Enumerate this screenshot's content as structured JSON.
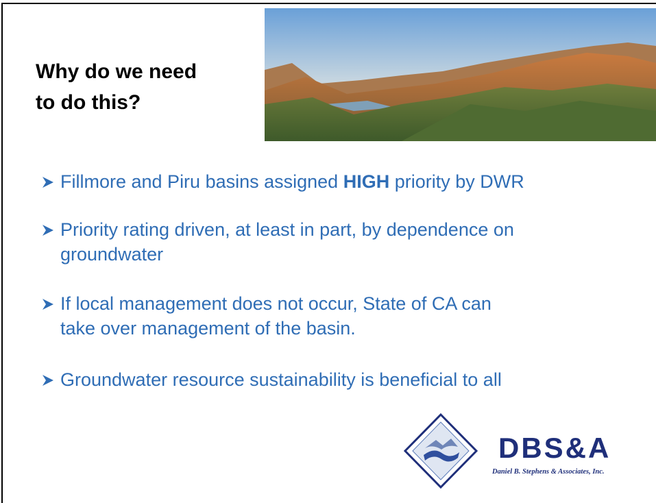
{
  "slide": {
    "title_lines": [
      "Why do we need",
      "to do this?"
    ],
    "bullets": [
      {
        "parts": [
          {
            "text": "Fillmore and Piru basins assigned "
          },
          {
            "text": "HIGH",
            "bold": true
          },
          {
            "text": " priority by DWR"
          }
        ]
      },
      {
        "lines": [
          "Priority rating driven, at least in part, by dependence on",
          "groundwater"
        ]
      },
      {
        "lines": [
          "If local management does not occur, State of CA can",
          "take over management of the basin."
        ]
      },
      {
        "lines": [
          "Groundwater resource sustainability is beneficial to all"
        ]
      }
    ],
    "logo": {
      "name": "DBS&A",
      "company": "Daniel B. Stephens & Associates, Inc."
    }
  }
}
